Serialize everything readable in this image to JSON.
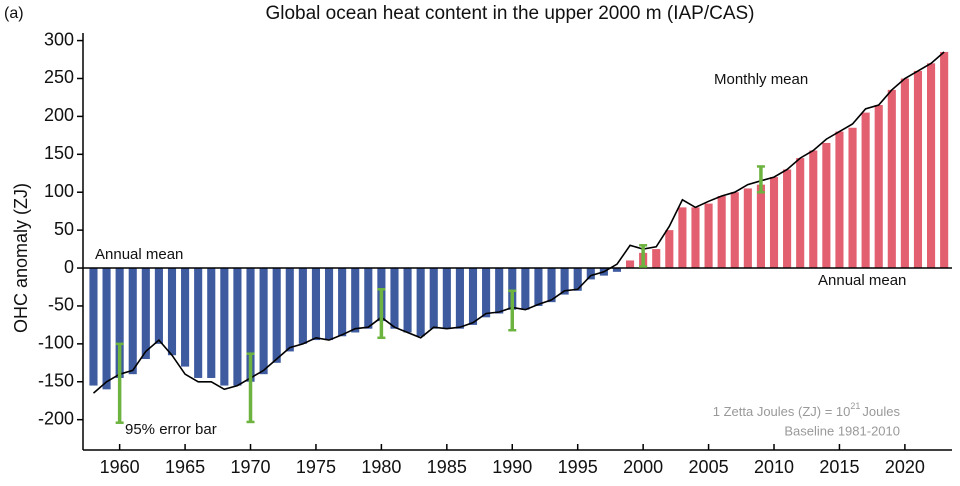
{
  "chart_data": {
    "type": "bar",
    "panel_label": "(a)",
    "title": "Global ocean heat content in the upper 2000 m (IAP/CAS)",
    "ylabel": "OHC anomaly (ZJ)",
    "x": [
      1958,
      1959,
      1960,
      1961,
      1962,
      1963,
      1964,
      1965,
      1966,
      1967,
      1968,
      1969,
      1970,
      1971,
      1972,
      1973,
      1974,
      1975,
      1976,
      1977,
      1978,
      1979,
      1980,
      1981,
      1982,
      1983,
      1984,
      1985,
      1986,
      1987,
      1988,
      1989,
      1990,
      1991,
      1992,
      1993,
      1994,
      1995,
      1996,
      1997,
      1998,
      1999,
      2000,
      2001,
      2002,
      2003,
      2004,
      2005,
      2006,
      2007,
      2008,
      2009,
      2010,
      2011,
      2012,
      2013,
      2014,
      2015,
      2016,
      2017,
      2018,
      2019,
      2020,
      2021,
      2022,
      2023
    ],
    "series": [
      {
        "name": "Annual mean",
        "negative_color": "#3f5b9f",
        "positive_color": "#e2606f",
        "values": [
          -155,
          -160,
          -145,
          -140,
          -120,
          -100,
          -115,
          -130,
          -145,
          -145,
          -155,
          -155,
          -150,
          -140,
          -125,
          -110,
          -100,
          -95,
          -95,
          -90,
          -85,
          -80,
          -70,
          -80,
          -85,
          -90,
          -80,
          -80,
          -80,
          -75,
          -65,
          -60,
          -55,
          -55,
          -50,
          -45,
          -35,
          -30,
          -15,
          -10,
          -5,
          10,
          20,
          25,
          50,
          80,
          80,
          85,
          95,
          100,
          105,
          110,
          120,
          130,
          145,
          155,
          165,
          180,
          185,
          205,
          215,
          235,
          250,
          260,
          270,
          285
        ]
      },
      {
        "name": "Monthly mean",
        "color": "#000000",
        "values": [
          -165,
          -150,
          -140,
          -135,
          -110,
          -95,
          -115,
          -140,
          -150,
          -150,
          -160,
          -155,
          -145,
          -135,
          -120,
          -105,
          -100,
          -92,
          -95,
          -88,
          -80,
          -78,
          -65,
          -78,
          -85,
          -92,
          -78,
          -80,
          -78,
          -72,
          -60,
          -58,
          -52,
          -55,
          -48,
          -42,
          -30,
          -28,
          -10,
          -5,
          5,
          30,
          25,
          28,
          55,
          90,
          80,
          88,
          95,
          100,
          110,
          115,
          120,
          130,
          145,
          155,
          170,
          180,
          190,
          210,
          215,
          235,
          250,
          260,
          270,
          285
        ]
      }
    ],
    "error_bars": {
      "name": "95% error bar",
      "color": "#6db33f",
      "x": [
        1960,
        1970,
        1980,
        1990,
        2000,
        2009
      ],
      "values": [
        -152,
        -158,
        -60,
        -56,
        16,
        117
      ],
      "errors": [
        52,
        45,
        32,
        26,
        14,
        17
      ]
    },
    "note": [
      "1 Zetta Joules (ZJ) = 10",
      "21",
      "Joules"
    ],
    "baseline": "Baseline 1981-2010",
    "xlim": [
      1957.2,
      2023.6
    ],
    "xticks": [
      1960,
      1965,
      1970,
      1975,
      1980,
      1985,
      1990,
      1995,
      2000,
      2005,
      2010,
      2015,
      2020
    ],
    "ylim": [
      -240,
      310
    ],
    "yticks": [
      -200,
      -150,
      -100,
      -50,
      0,
      50,
      100,
      150,
      200,
      250,
      300
    ]
  }
}
